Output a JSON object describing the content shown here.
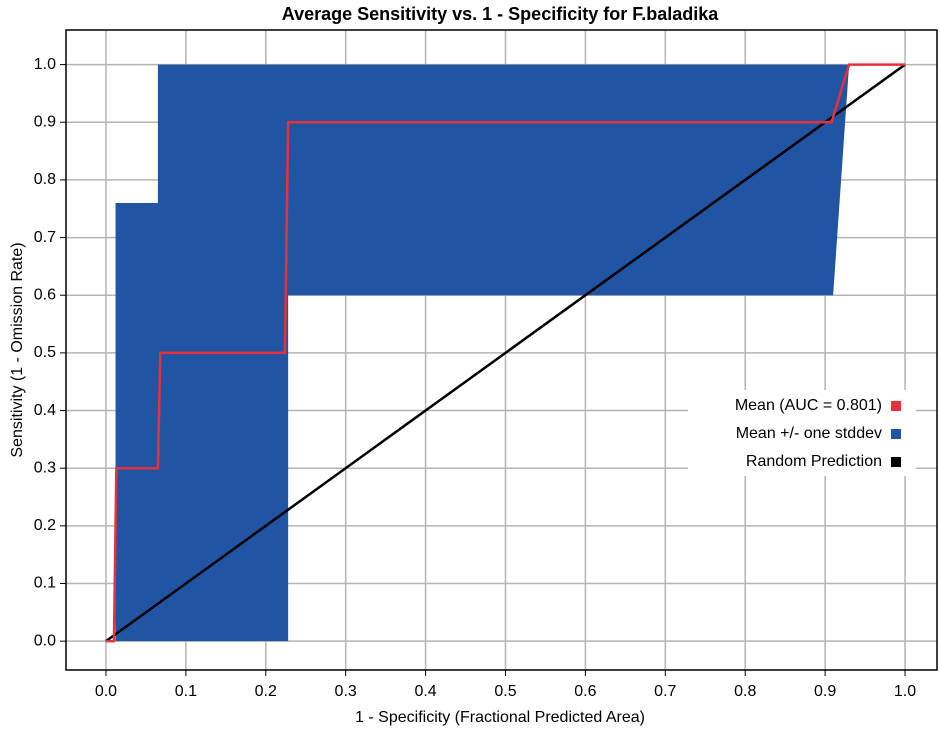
{
  "chart_data": {
    "type": "line",
    "title": "Average Sensitivity vs. 1 - Specificity for F.baladika",
    "x_label": "1 - Specificity (Fractional Predicted Area)",
    "y_label": "Sensitivity (1 - Omission Rate)",
    "xlim": [
      -0.05,
      1.04
    ],
    "ylim": [
      -0.05,
      1.06
    ],
    "xticks": [
      {
        "value": 0,
        "label": "0.0"
      },
      {
        "value": 0.1,
        "label": "0.1"
      },
      {
        "value": 0.2,
        "label": "0.2"
      },
      {
        "value": 0.3,
        "label": "0.3"
      },
      {
        "value": 0.4,
        "label": "0.4"
      },
      {
        "value": 0.5,
        "label": "0.5"
      },
      {
        "value": 0.6,
        "label": "0.6"
      },
      {
        "value": 0.7,
        "label": "0.7"
      },
      {
        "value": 0.8,
        "label": "0.8"
      },
      {
        "value": 0.9,
        "label": "0.9"
      },
      {
        "value": 1,
        "label": "1.0"
      }
    ],
    "yticks": [
      {
        "value": 0,
        "label": "0.0"
      },
      {
        "value": 0.1,
        "label": "0.1"
      },
      {
        "value": 0.2,
        "label": "0.2"
      },
      {
        "value": 0.3,
        "label": "0.3"
      },
      {
        "value": 0.4,
        "label": "0.4"
      },
      {
        "value": 0.5,
        "label": "0.5"
      },
      {
        "value": 0.6,
        "label": "0.6"
      },
      {
        "value": 0.7,
        "label": "0.7"
      },
      {
        "value": 0.8,
        "label": "0.8"
      },
      {
        "value": 0.9,
        "label": "0.9"
      },
      {
        "value": 1,
        "label": "1.0"
      }
    ],
    "grid": true,
    "legend": "right",
    "series": [
      {
        "name": "Mean (AUC = 0.801)",
        "color": "#e8303a",
        "x": [
          0,
          0.01,
          0.013,
          0.065,
          0.068,
          0.224,
          0.228,
          0.908,
          0.93,
          1
        ],
        "values": [
          0,
          0,
          0.3,
          0.3,
          0.5,
          0.5,
          0.9,
          0.9,
          1,
          1
        ]
      },
      {
        "name": "Mean +/- one stddev",
        "color": "#2155a3",
        "band": true,
        "x": [
          0,
          0.012,
          0.012,
          0.065,
          0.065,
          0.228,
          0.228,
          0.91,
          0.93,
          1
        ],
        "upper": [
          0,
          0,
          0.76,
          0.76,
          1,
          1,
          1,
          1,
          1,
          1
        ],
        "lower": [
          0,
          0,
          0,
          0,
          0,
          0,
          0.6,
          0.6,
          1,
          1
        ]
      },
      {
        "name": "Random Prediction",
        "color": "#000000",
        "x": [
          0,
          1
        ],
        "values": [
          0,
          1
        ]
      }
    ]
  }
}
